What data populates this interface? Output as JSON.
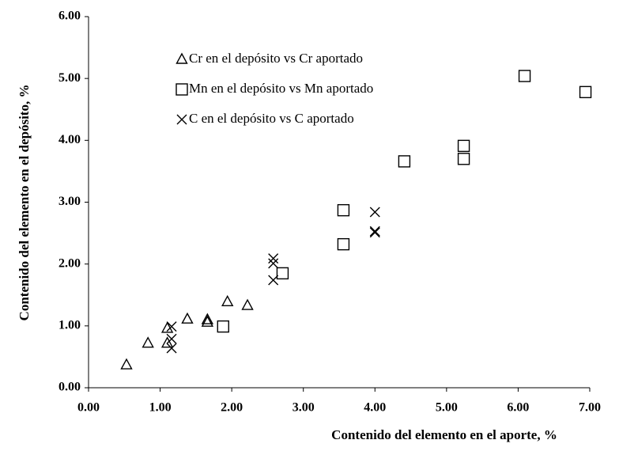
{
  "chart_data": {
    "type": "scatter",
    "x_label": "Contenido del elemento en el aporte, %",
    "y_label": "Contenido del elemento en el depósito, %",
    "xlim": [
      0,
      7
    ],
    "ylim": [
      0,
      6
    ],
    "xticks": [
      {
        "value": 0,
        "label": "0.00"
      },
      {
        "value": 1,
        "label": "1.00"
      },
      {
        "value": 2,
        "label": "2.00"
      },
      {
        "value": 3,
        "label": "3.00"
      },
      {
        "value": 4,
        "label": "4.00"
      },
      {
        "value": 5,
        "label": "5.00"
      },
      {
        "value": 6,
        "label": "6.00"
      },
      {
        "value": 7,
        "label": "7.00"
      }
    ],
    "yticks": [
      {
        "value": 0,
        "label": "0.00"
      },
      {
        "value": 1,
        "label": "1.00"
      },
      {
        "value": 2,
        "label": "2.00"
      },
      {
        "value": 3,
        "label": "3.00"
      },
      {
        "value": 4,
        "label": "4.00"
      },
      {
        "value": 5,
        "label": "5.00"
      },
      {
        "value": 6,
        "label": "6.00"
      }
    ],
    "grid": false,
    "legend": "upper-left",
    "series": [
      {
        "name": "Cr en el depósito vs Cr aportado",
        "color": "#000000",
        "marker": "triangle",
        "x": [
          0.53,
          0.83,
          1.1,
          1.1,
          1.38,
          1.66,
          1.66,
          1.94,
          2.22
        ],
        "values": [
          0.37,
          0.72,
          0.96,
          0.72,
          1.11,
          1.1,
          1.06,
          1.39,
          1.33
        ]
      },
      {
        "name": "Mn en el depósito vs Mn aportado",
        "color": "#000000",
        "marker": "square",
        "x": [
          1.88,
          2.71,
          3.56,
          3.56,
          4.41,
          5.24,
          5.24,
          6.09,
          6.94
        ],
        "values": [
          0.99,
          1.85,
          2.32,
          2.87,
          3.66,
          3.91,
          3.7,
          5.04,
          4.78
        ]
      },
      {
        "name": "C en el depósito vs C aportado",
        "color": "#000000",
        "marker": "cross",
        "x": [
          1.16,
          1.16,
          1.16,
          2.58,
          2.58,
          2.58,
          4.0,
          4.0,
          4.0
        ],
        "values": [
          0.99,
          0.79,
          0.64,
          2.09,
          2.01,
          1.74,
          2.84,
          2.51,
          2.53
        ]
      }
    ]
  }
}
